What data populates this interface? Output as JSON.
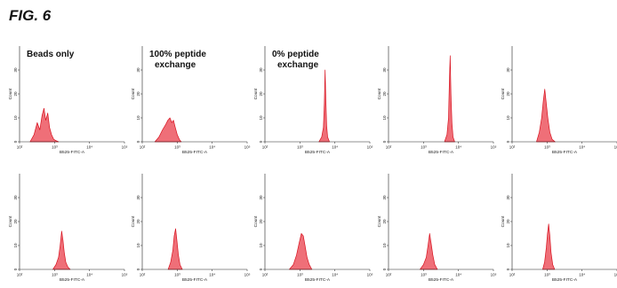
{
  "figure": {
    "title": "FIG. 6"
  },
  "colors": {
    "fill": "#ef6f78",
    "stroke": "#d8121f",
    "axis": "#222222"
  },
  "chart_data": [
    {
      "type": "area",
      "row": 1,
      "col": 1,
      "annotation_lines": [
        "Beads only"
      ],
      "xlabel": "B525-FITC-A",
      "ylabel": "Count",
      "x_scale": "log",
      "xlim": [
        100,
        100000
      ],
      "ylim": [
        0,
        40
      ],
      "yticks": [
        0,
        10,
        20,
        30
      ],
      "xticks": [
        "10²",
        "10³",
        "10⁴",
        "10⁵"
      ],
      "x": [
        200,
        260,
        320,
        380,
        440,
        500,
        560,
        640,
        720,
        820,
        950,
        1100,
        1300
      ],
      "y": [
        0,
        3,
        8,
        5,
        11,
        14,
        9,
        12,
        6,
        3,
        1,
        0.5,
        0
      ]
    },
    {
      "type": "area",
      "row": 1,
      "col": 2,
      "annotation_lines": [
        "100% peptide",
        "exchange"
      ],
      "xlabel": "B525-FITC-A",
      "ylabel": "Count",
      "x_scale": "log",
      "xlim": [
        100,
        100000
      ],
      "ylim": [
        0,
        40
      ],
      "yticks": [
        0,
        10,
        20,
        30
      ],
      "xticks": [
        "10²",
        "10³",
        "10⁴",
        "10⁵"
      ],
      "x": [
        230,
        300,
        380,
        460,
        540,
        620,
        700,
        780,
        880,
        1000,
        1150,
        1300
      ],
      "y": [
        0,
        2,
        5,
        7,
        9,
        10,
        8,
        9,
        6,
        3,
        1,
        0
      ]
    },
    {
      "type": "area",
      "row": 1,
      "col": 3,
      "annotation_lines": [
        "0% peptide",
        "exchange"
      ],
      "xlabel": "B525-FITC-A",
      "ylabel": "Count",
      "x_scale": "log",
      "xlim": [
        100,
        100000
      ],
      "ylim": [
        0,
        40
      ],
      "yticks": [
        0,
        10,
        20,
        30
      ],
      "xticks": [
        "10²",
        "10³",
        "10⁴",
        "10⁵"
      ],
      "x": [
        3500,
        4200,
        4700,
        5000,
        5250,
        5500,
        5800,
        6200,
        7000
      ],
      "y": [
        0,
        2,
        6,
        16,
        30,
        18,
        7,
        2,
        0
      ]
    },
    {
      "type": "area",
      "row": 1,
      "col": 4,
      "annotation_lines": [],
      "xlabel": "B525-FITC-A",
      "ylabel": "Count",
      "x_scale": "log",
      "xlim": [
        100,
        100000
      ],
      "ylim": [
        0,
        40
      ],
      "yticks": [
        0,
        10,
        20,
        30
      ],
      "xticks": [
        "10²",
        "10³",
        "10⁴",
        "10⁵"
      ],
      "x": [
        4000,
        4700,
        5200,
        5500,
        5800,
        6100,
        6500,
        7000,
        7800
      ],
      "y": [
        0,
        3,
        10,
        25,
        36,
        20,
        8,
        2,
        0
      ]
    },
    {
      "type": "area",
      "row": 1,
      "col": 5,
      "annotation_lines": [],
      "xlabel": "B525-FITC-A",
      "ylabel": "Count",
      "x_scale": "log",
      "xlim": [
        100,
        100000
      ],
      "ylim": [
        0,
        40
      ],
      "yticks": [
        0,
        10,
        20,
        30
      ],
      "xticks": [
        "10²",
        "10³",
        "10⁴",
        "10⁵"
      ],
      "x": [
        500,
        600,
        700,
        780,
        860,
        950,
        1050,
        1200,
        1400,
        1700
      ],
      "y": [
        0,
        4,
        10,
        17,
        22,
        16,
        10,
        4,
        1,
        0
      ]
    },
    {
      "type": "area",
      "row": 2,
      "col": 1,
      "annotation_lines": [],
      "xlabel": "B525-FITC-A",
      "ylabel": "Count",
      "x_scale": "log",
      "xlim": [
        100,
        100000
      ],
      "ylim": [
        0,
        40
      ],
      "yticks": [
        0,
        10,
        20,
        30
      ],
      "xticks": [
        "10²",
        "10³",
        "10⁴",
        "10⁵"
      ],
      "x": [
        900,
        1100,
        1300,
        1450,
        1600,
        1750,
        1900,
        2100,
        2400,
        2800
      ],
      "y": [
        0,
        2,
        5,
        10,
        16,
        12,
        7,
        3,
        1,
        0
      ]
    },
    {
      "type": "area",
      "row": 2,
      "col": 2,
      "annotation_lines": [],
      "xlabel": "B525-FITC-A",
      "ylabel": "Count",
      "x_scale": "log",
      "xlim": [
        100,
        100000
      ],
      "ylim": [
        0,
        40
      ],
      "yticks": [
        0,
        10,
        20,
        30
      ],
      "xticks": [
        "10²",
        "10³",
        "10⁴",
        "10⁵"
      ],
      "x": [
        550,
        650,
        750,
        820,
        900,
        980,
        1080,
        1200,
        1400
      ],
      "y": [
        0,
        3,
        8,
        14,
        17,
        12,
        6,
        2,
        0
      ]
    },
    {
      "type": "area",
      "row": 2,
      "col": 3,
      "annotation_lines": [],
      "xlabel": "B525-FITC-A",
      "ylabel": "Count",
      "x_scale": "log",
      "xlim": [
        100,
        100000
      ],
      "ylim": [
        0,
        40
      ],
      "yticks": [
        0,
        10,
        20,
        30
      ],
      "xticks": [
        "10²",
        "10³",
        "10⁴",
        "10⁵"
      ],
      "x": [
        500,
        650,
        800,
        950,
        1100,
        1250,
        1400,
        1600,
        1850,
        2200
      ],
      "y": [
        0,
        2,
        6,
        11,
        15,
        14,
        10,
        5,
        2,
        0
      ]
    },
    {
      "type": "area",
      "row": 2,
      "col": 4,
      "annotation_lines": [],
      "xlabel": "B525-FITC-A",
      "ylabel": "Count",
      "x_scale": "log",
      "xlim": [
        100,
        100000
      ],
      "ylim": [
        0,
        40
      ],
      "yticks": [
        0,
        10,
        20,
        30
      ],
      "xticks": [
        "10²",
        "10³",
        "10⁴",
        "10⁵"
      ],
      "x": [
        800,
        1000,
        1200,
        1350,
        1500,
        1650,
        1850,
        2100,
        2500
      ],
      "y": [
        0,
        2,
        5,
        10,
        15,
        11,
        6,
        2,
        0
      ]
    },
    {
      "type": "area",
      "row": 2,
      "col": 5,
      "annotation_lines": [],
      "xlabel": "B525-FITC-A",
      "ylabel": "Count",
      "x_scale": "log",
      "xlim": [
        100,
        100000
      ],
      "ylim": [
        0,
        40
      ],
      "yticks": [
        0,
        10,
        20,
        30
      ],
      "xticks": [
        "10²",
        "10³",
        "10⁴",
        "10⁵"
      ],
      "x": [
        750,
        850,
        950,
        1030,
        1110,
        1200,
        1300,
        1450,
        1650
      ],
      "y": [
        0,
        3,
        9,
        15,
        19,
        14,
        7,
        2,
        0
      ]
    }
  ]
}
